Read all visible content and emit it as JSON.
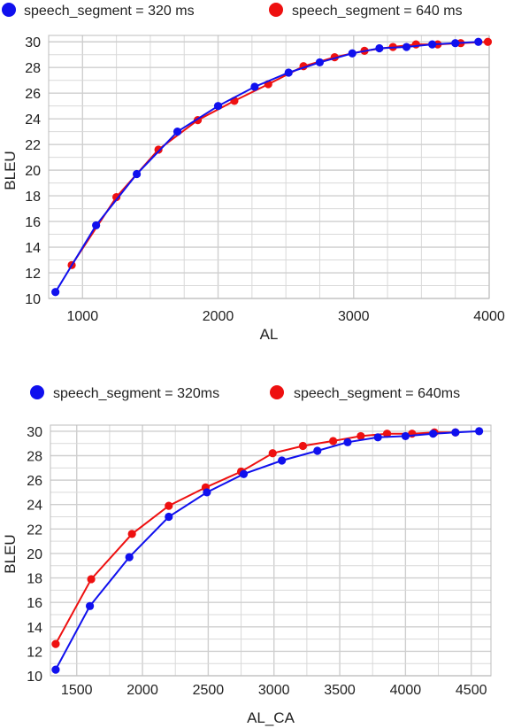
{
  "chart_data": [
    {
      "type": "line",
      "xlabel": "AL",
      "ylabel": "BLEU",
      "xlim": [
        750,
        4000
      ],
      "ylim": [
        10,
        30.5
      ],
      "xticks": [
        1000,
        2000,
        3000,
        4000
      ],
      "yticks": [
        10,
        12,
        14,
        16,
        18,
        20,
        22,
        24,
        26,
        28,
        30
      ],
      "grid": true,
      "legend_position": "top",
      "series": [
        {
          "name": "speech_segment = 320 ms",
          "color": "#1010ee",
          "x": [
            800,
            1100,
            1400,
            1700,
            2000,
            2270,
            2520,
            2750,
            2990,
            3190,
            3390,
            3580,
            3750,
            3920
          ],
          "y": [
            10.5,
            15.7,
            19.7,
            23.0,
            25.0,
            26.5,
            27.6,
            28.4,
            29.1,
            29.5,
            29.6,
            29.8,
            29.9,
            30.0
          ]
        },
        {
          "name": "speech_segment = 640 ms",
          "color": "#ee1010",
          "x": [
            920,
            1250,
            1560,
            1850,
            2120,
            2370,
            2630,
            2860,
            3080,
            3290,
            3460,
            3620,
            3790,
            3990
          ],
          "y": [
            12.6,
            17.9,
            21.6,
            23.9,
            25.4,
            26.7,
            28.1,
            28.8,
            29.3,
            29.6,
            29.8,
            29.8,
            29.9,
            30.0
          ]
        }
      ]
    },
    {
      "type": "line",
      "xlabel": "AL_CA",
      "ylabel": "BLEU",
      "xlim": [
        1300,
        4650
      ],
      "ylim": [
        10,
        30.5
      ],
      "xticks": [
        1500,
        2000,
        2500,
        3000,
        3500,
        4000,
        4500
      ],
      "yticks": [
        10,
        12,
        14,
        16,
        18,
        20,
        22,
        24,
        26,
        28,
        30
      ],
      "grid": true,
      "legend_position": "top",
      "series": [
        {
          "name": "speech_segment = 320ms",
          "color": "#1010ee",
          "x": [
            1340,
            1600,
            1900,
            2200,
            2490,
            2770,
            3060,
            3330,
            3560,
            3790,
            4000,
            4210,
            4380,
            4560
          ],
          "y": [
            10.5,
            15.7,
            19.7,
            23.0,
            25.0,
            26.5,
            27.6,
            28.4,
            29.1,
            29.5,
            29.6,
            29.8,
            29.9,
            30.0
          ]
        },
        {
          "name": "speech_segment = 640ms",
          "color": "#ee1010",
          "x": [
            1340,
            1610,
            1920,
            2200,
            2480,
            2750,
            2990,
            3220,
            3450,
            3660,
            3860,
            4050,
            4220,
            4380
          ],
          "y": [
            12.6,
            17.9,
            21.6,
            23.9,
            25.4,
            26.7,
            28.2,
            28.8,
            29.2,
            29.6,
            29.8,
            29.8,
            29.9,
            29.9
          ]
        }
      ]
    }
  ]
}
